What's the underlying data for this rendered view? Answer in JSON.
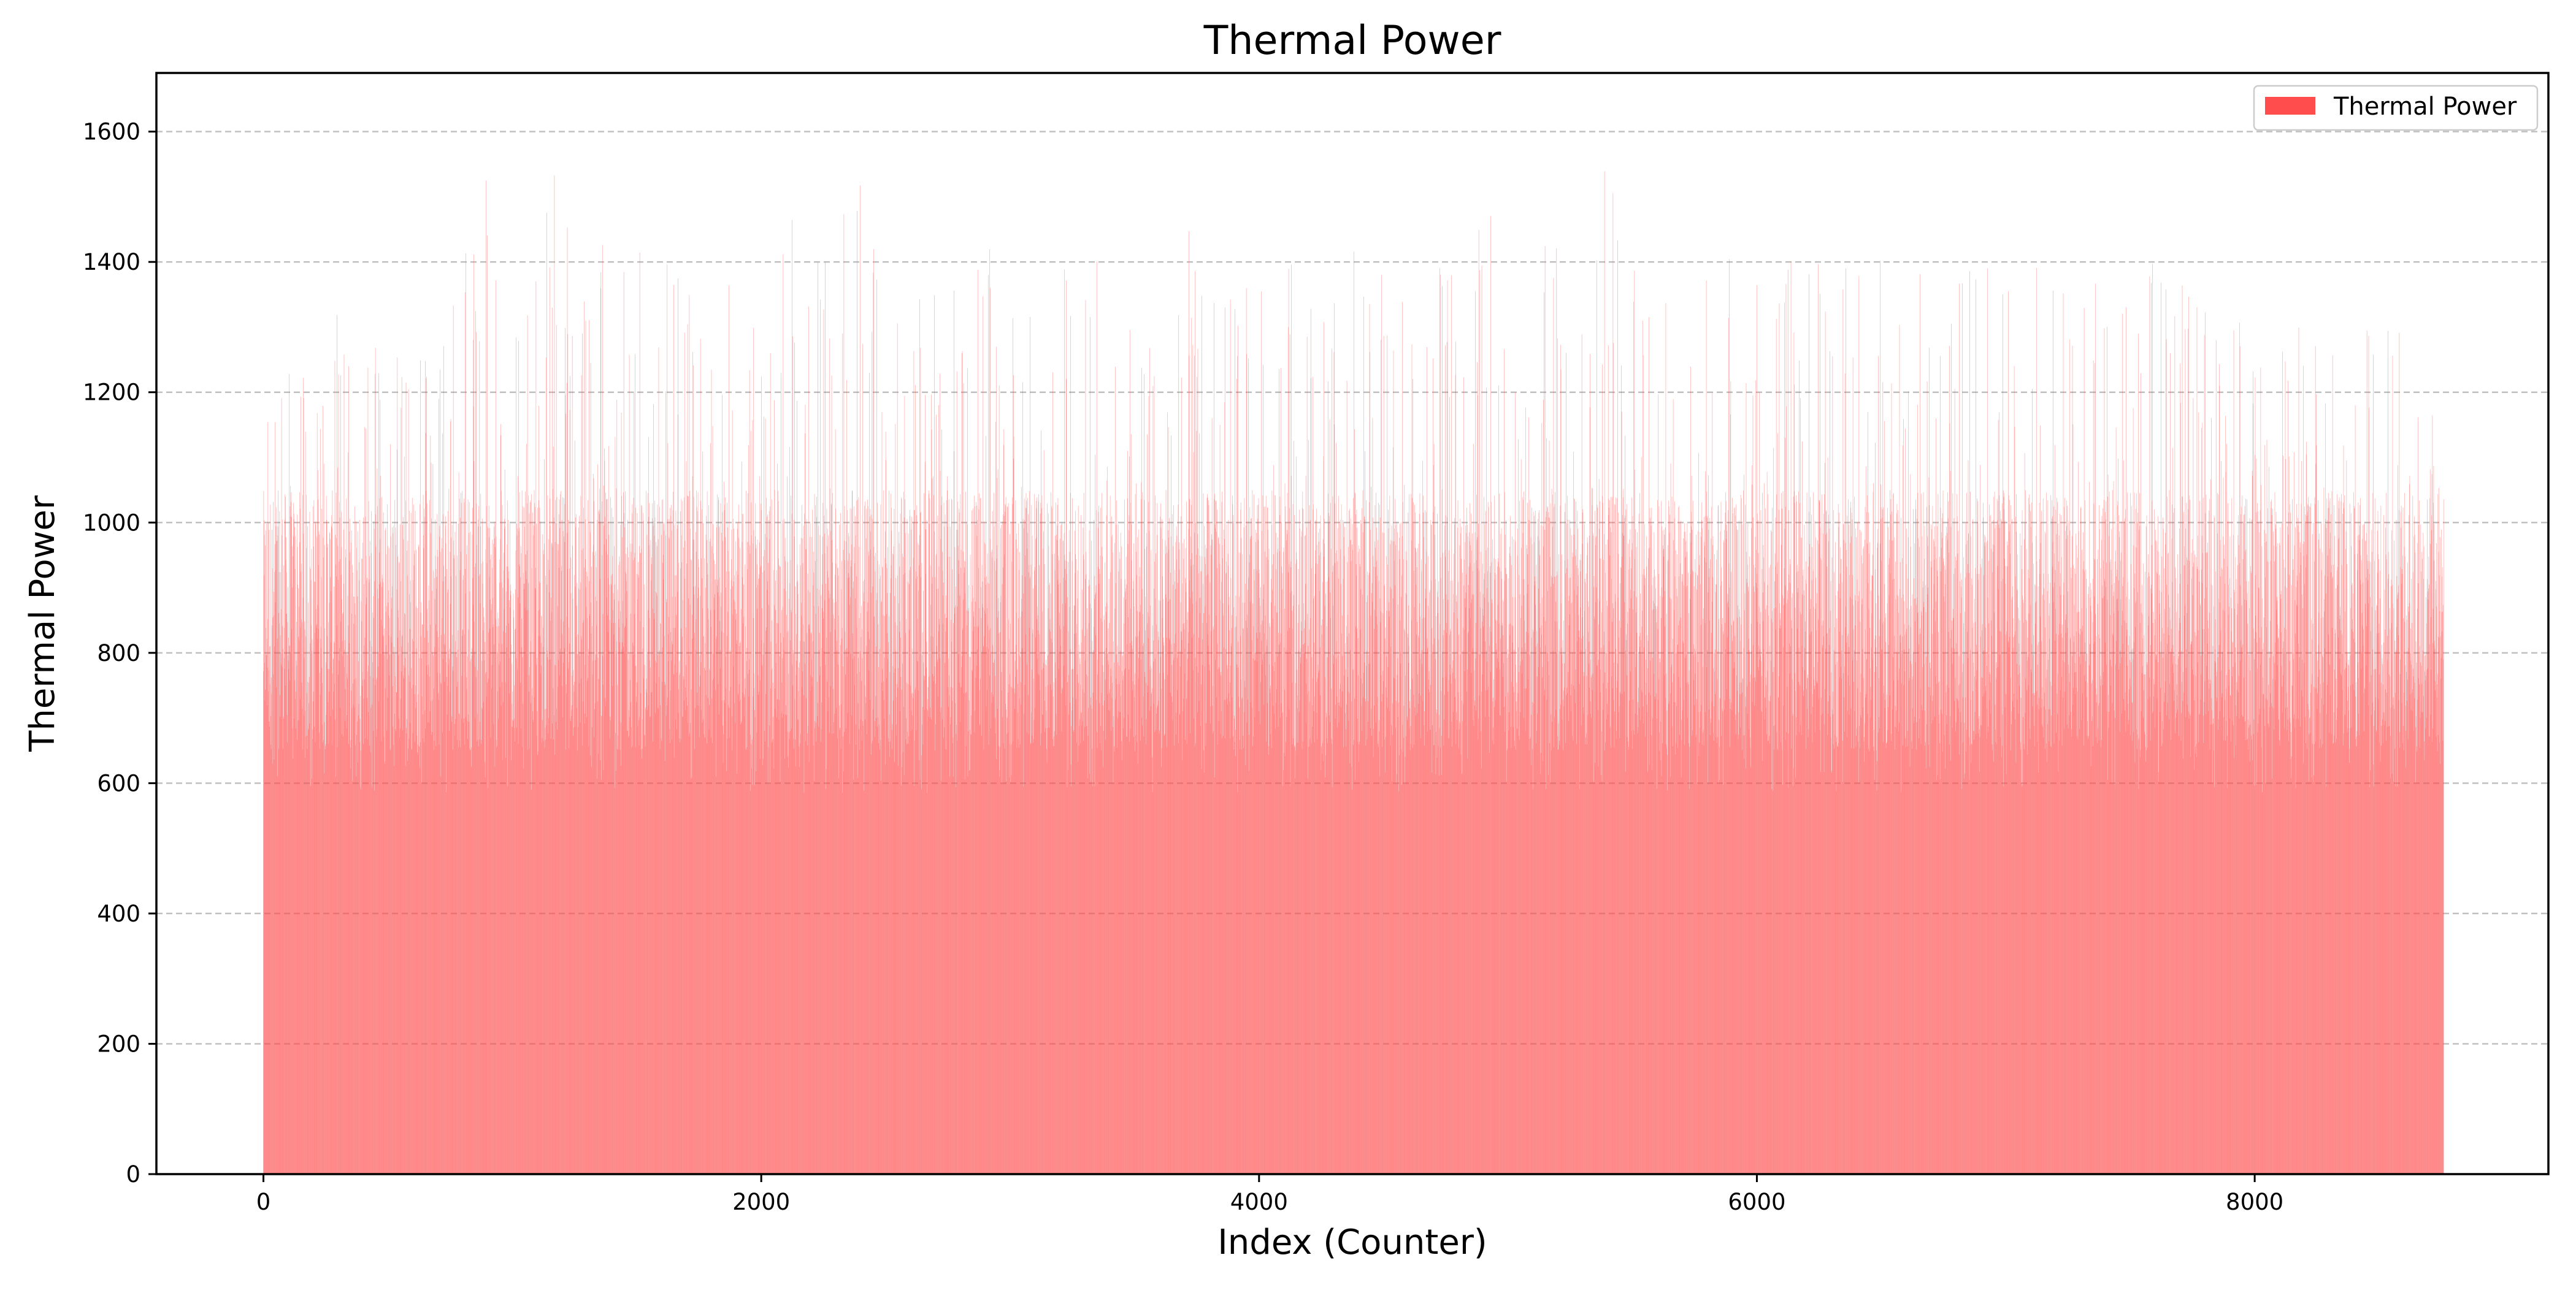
{
  "chart_data": {
    "type": "bar",
    "title": "Thermal Power",
    "xlabel": "Index (Counter)",
    "ylabel": "Thermal Power",
    "xlim": [
      -430,
      9180
    ],
    "ylim": [
      0,
      1690
    ],
    "x_ticks": [
      0,
      2000,
      4000,
      6000,
      8000
    ],
    "y_ticks": [
      0,
      200,
      400,
      600,
      800,
      1000,
      1200,
      1400,
      1600
    ],
    "x_tick_labels": [
      "0",
      "2000",
      "4000",
      "6000",
      "8000"
    ],
    "y_tick_labels": [
      "0",
      "200",
      "400",
      "600",
      "800",
      "1000",
      "1200",
      "1400",
      "1600"
    ],
    "grid": "y-dashed",
    "legend": {
      "position": "top-right",
      "entries": [
        "Thermal Power"
      ]
    },
    "colors": {
      "bar": "#ff4d4d",
      "grid": "#b0b0b0"
    },
    "series": [
      {
        "name": "Thermal Power",
        "x_range": [
          0,
          8759
        ],
        "count": 8760,
        "typical_range": [
          650,
          1050
        ],
        "envelope_peaks": {
          "x": [
            0,
            100,
            300,
            500,
            700,
            900,
            1000,
            1200,
            1300,
            1400,
            1600,
            1700,
            1900,
            2100,
            2200,
            2300,
            2400,
            2500,
            2600,
            2700,
            2800,
            3000,
            3200,
            3300,
            3500,
            3600,
            3700,
            3800,
            4000,
            4200,
            4400,
            4600,
            4800,
            5000,
            5100,
            5200,
            5300,
            5400,
            5500,
            5700,
            5800,
            5900,
            6000,
            6200,
            6400,
            6600,
            6800,
            7000,
            7100,
            7200,
            7400,
            7600,
            7800,
            8000,
            8200,
            8400,
            8500,
            8600,
            8700,
            8759
          ],
          "y": [
            1280,
            1240,
            1330,
            1260,
            1290,
            1560,
            1310,
            1580,
            1320,
            1530,
            1440,
            1420,
            1380,
            1440,
            1565,
            1510,
            1540,
            1460,
            1400,
            1430,
            1490,
            1380,
            1530,
            1400,
            1450,
            1460,
            1460,
            1420,
            1390,
            1400,
            1420,
            1400,
            1440,
            1610,
            1420,
            1480,
            1430,
            1560,
            1410,
            1410,
            1510,
            1400,
            1380,
            1430,
            1420,
            1390,
            1400,
            1420,
            1390,
            1430,
            1380,
            1400,
            1350,
            1300,
            1320,
            1380,
            1380,
            1280,
            1270,
            1120
          ]
        }
      }
    ]
  }
}
